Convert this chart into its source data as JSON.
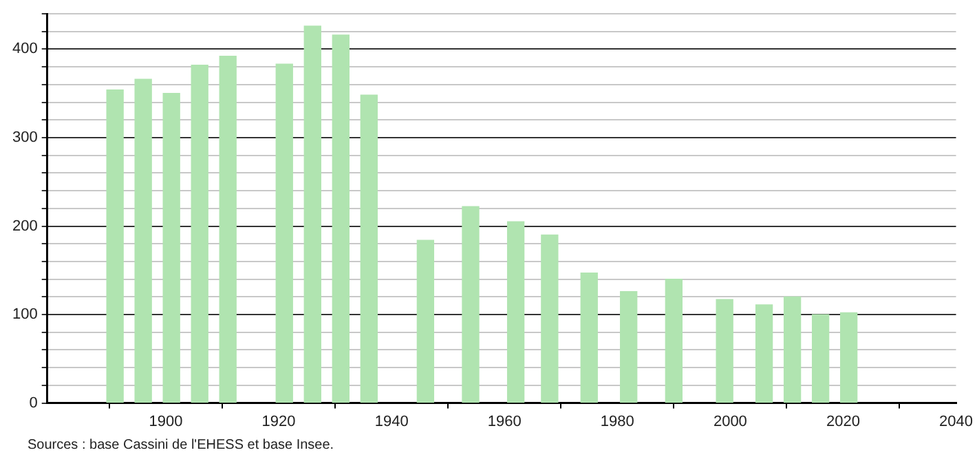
{
  "chart_data": {
    "type": "bar",
    "x": [
      1891,
      1896,
      1901,
      1906,
      1911,
      1921,
      1926,
      1931,
      1936,
      1946,
      1954,
      1962,
      1968,
      1975,
      1982,
      1990,
      1999,
      2006,
      2011,
      2016,
      2021
    ],
    "values": [
      354,
      366,
      350,
      382,
      392,
      383,
      426,
      416,
      348,
      184,
      222,
      205,
      190,
      147,
      126,
      140,
      117,
      111,
      120,
      100,
      102
    ],
    "color": "#b0e4b0",
    "xlim": [
      1879,
      2040
    ],
    "xticks": [
      1900,
      1920,
      1940,
      1960,
      1980,
      2000,
      2020,
      2040
    ],
    "ylim": [
      0,
      440
    ],
    "yticks": [
      0,
      {
        "value": 20,
        "label": null
      },
      {
        "value": 40,
        "label": null
      },
      {
        "value": 60,
        "label": null
      },
      {
        "value": 80,
        "label": null
      },
      100,
      {
        "value": 120,
        "label": null
      },
      {
        "value": 140,
        "label": null
      },
      {
        "value": 160,
        "label": null
      },
      {
        "value": 180,
        "label": null
      },
      200,
      {
        "value": 220,
        "label": null
      },
      {
        "value": 240,
        "label": null
      },
      {
        "value": 260,
        "label": null
      },
      {
        "value": 280,
        "label": null
      },
      300,
      {
        "value": 320,
        "label": null
      },
      {
        "value": 340,
        "label": null
      },
      {
        "value": 360,
        "label": null
      },
      {
        "value": 380,
        "label": null
      },
      400,
      {
        "value": 420,
        "label": null
      },
      {
        "value": 440,
        "label": null
      }
    ],
    "grid": "y",
    "annotations": [
      "Sources : base Cassini de l'EHESS et base Insee."
    ]
  }
}
